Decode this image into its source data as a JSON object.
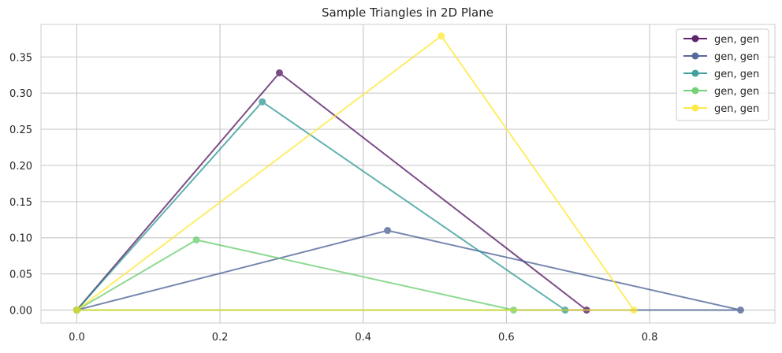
{
  "chart_data": {
    "type": "line",
    "title": "Sample Triangles in 2D Plane",
    "xlabel": "",
    "ylabel": "",
    "xlim": [
      -0.05,
      0.975
    ],
    "ylim": [
      -0.018,
      0.395
    ],
    "xticks": [
      0.0,
      0.2,
      0.4,
      0.6,
      0.8
    ],
    "xtick_labels": [
      "0.0",
      "0.2",
      "0.4",
      "0.6",
      "0.8"
    ],
    "yticks": [
      0.0,
      0.05,
      0.1,
      0.15,
      0.2,
      0.25,
      0.3,
      0.35
    ],
    "ytick_labels": [
      "0.00",
      "0.05",
      "0.10",
      "0.15",
      "0.20",
      "0.25",
      "0.30",
      "0.35"
    ],
    "grid": true,
    "legend_position": "upper right",
    "series": [
      {
        "name": "gen, gen",
        "color": "#440154",
        "x": [
          0.0,
          0.712,
          0.283,
          0.0
        ],
        "y": [
          0.0,
          0.0,
          0.328,
          0.0
        ]
      },
      {
        "name": "gen, gen",
        "color": "#3b528b",
        "x": [
          0.0,
          0.927,
          0.434,
          0.0
        ],
        "y": [
          0.0,
          0.0,
          0.11,
          0.0
        ]
      },
      {
        "name": "gen, gen",
        "color": "#21918c",
        "x": [
          0.0,
          0.682,
          0.259,
          0.0
        ],
        "y": [
          0.0,
          0.0,
          0.288,
          0.0
        ]
      },
      {
        "name": "gen, gen",
        "color": "#5ec962",
        "x": [
          0.0,
          0.61,
          0.167,
          0.0
        ],
        "y": [
          0.0,
          0.0,
          0.097,
          0.0
        ]
      },
      {
        "name": "gen, gen",
        "color": "#fde725",
        "x": [
          0.0,
          0.778,
          0.509,
          0.0
        ],
        "y": [
          0.0,
          0.0,
          0.379,
          0.0
        ]
      }
    ]
  }
}
